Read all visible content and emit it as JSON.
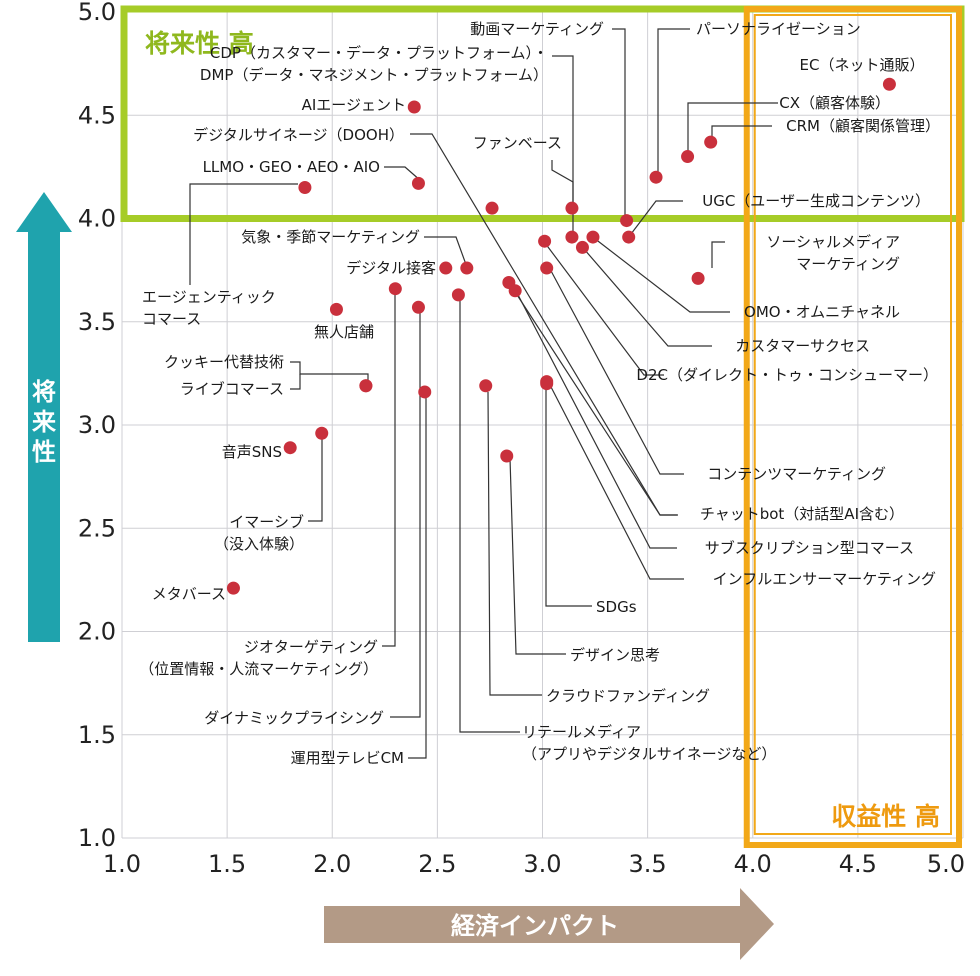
{
  "chart_data": {
    "type": "scatter",
    "x_axis": {
      "label": "経済インパクト",
      "range": [
        1.0,
        5.0
      ],
      "ticks": [
        "1.0",
        "1.5",
        "2.0",
        "2.5",
        "3.0",
        "3.5",
        "4.0",
        "4.5",
        "5.0"
      ]
    },
    "y_axis": {
      "label": "将来性",
      "range": [
        1.0,
        5.0
      ],
      "ticks": [
        "1.0",
        "1.5",
        "2.0",
        "2.5",
        "3.0",
        "3.5",
        "4.0",
        "4.5",
        "5.0"
      ]
    },
    "grid": true,
    "regions": [
      {
        "label": "将来性 高",
        "y_min": 4.0,
        "y_max": 5.0,
        "color": "#a6cc28"
      },
      {
        "label": "収益性 高",
        "x_min": 4.0,
        "x_max": 5.0,
        "color": "#f2a818"
      }
    ],
    "point_color": "#c9303c",
    "points": [
      {
        "label": "EC（ネット通販）",
        "x": 4.65,
        "y": 4.65
      },
      {
        "label": "CX（顧客体験）",
        "x": 3.69,
        "y": 4.3
      },
      {
        "label": "CRM（顧客関係管理）",
        "x": 3.8,
        "y": 4.37
      },
      {
        "label": "パーソナライゼーション",
        "x": 3.54,
        "y": 4.2
      },
      {
        "label": "動画マーケティング",
        "x": 3.4,
        "y": 3.99
      },
      {
        "label": "UGC（ユーザー生成コンテンツ）",
        "x": 3.41,
        "y": 3.91
      },
      {
        "label": "CDP（カスタマー・データ・プラットフォーム）・DMP（データ・マネジメント・プラットフォーム）",
        "x": 3.14,
        "y": 4.05
      },
      {
        "label": "ファンベース",
        "x": 3.14,
        "y": 3.91
      },
      {
        "label": "AIエージェント",
        "x": 2.39,
        "y": 4.54
      },
      {
        "label": "デジタルサイネージ（DOOH）",
        "x": 2.76,
        "y": 4.05
      },
      {
        "label": "LLMO・GEO・AEO・AIO",
        "x": 2.41,
        "y": 4.17
      },
      {
        "label": "エージェンティックコマース",
        "x": 1.87,
        "y": 4.15
      },
      {
        "label": "ソーシャルメディアマーケティング",
        "x": 3.74,
        "y": 3.71
      },
      {
        "label": "OMO・オムニチャネル",
        "x": 3.24,
        "y": 3.91
      },
      {
        "label": "カスタマーサクセス",
        "x": 3.19,
        "y": 3.86
      },
      {
        "label": "D2C（ダイレクト・トゥ・コンシューマー）",
        "x": 3.01,
        "y": 3.89
      },
      {
        "label": "コンテンツマーケティング",
        "x": 3.02,
        "y": 3.76
      },
      {
        "label": "チャットbot（対話型AI含む）",
        "x": 2.84,
        "y": 3.69
      },
      {
        "label": "サブスクリプション型コマース",
        "x": 2.87,
        "y": 3.65
      },
      {
        "label": "インフルエンサーマーケティング",
        "x": 3.02,
        "y": 3.2
      },
      {
        "label": "気象・季節マーケティング",
        "x": 2.64,
        "y": 3.76
      },
      {
        "label": "デジタル接客",
        "x": 2.54,
        "y": 3.76
      },
      {
        "label": "リテールメディア（アプリやデジタルサイネージなど）",
        "x": 2.6,
        "y": 3.63
      },
      {
        "label": "無人店舗",
        "x": 2.02,
        "y": 3.56
      },
      {
        "label": "クッキー代替技術",
        "x": 2.16,
        "y": 3.19
      },
      {
        "label": "ライブコマース",
        "x": 2.16,
        "y": 3.19
      },
      {
        "label": "ジオターゲティング（位置情報・人流マーケティング）",
        "x": 2.3,
        "y": 3.66
      },
      {
        "label": "ダイナミックプライシング",
        "x": 2.41,
        "y": 3.57
      },
      {
        "label": "運用型テレビCM",
        "x": 2.44,
        "y": 3.16
      },
      {
        "label": "音声SNS",
        "x": 1.8,
        "y": 2.89
      },
      {
        "label": "イマーシブ（没入体験）",
        "x": 1.95,
        "y": 2.96
      },
      {
        "label": "メタバース",
        "x": 1.53,
        "y": 2.21
      },
      {
        "label": "SDGs",
        "x": 3.02,
        "y": 3.21
      },
      {
        "label": "デザイン思考",
        "x": 2.83,
        "y": 2.85
      },
      {
        "label": "クラウドファンディング",
        "x": 2.73,
        "y": 3.19
      }
    ]
  }
}
